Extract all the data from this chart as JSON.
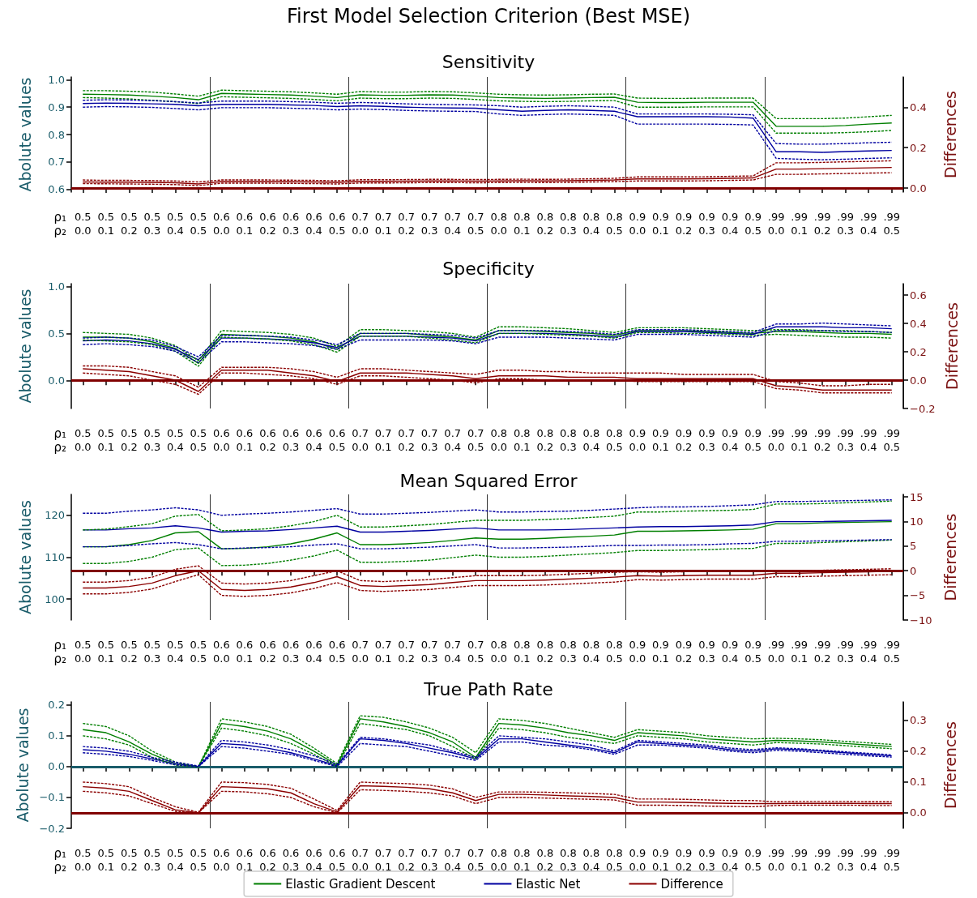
{
  "chart_data": [
    {
      "type": "line",
      "title": "First Model Selection Criterion (Best MSE)",
      "subtitle": "Sensitivity",
      "xlabel": "ρ₁\nρ₂",
      "ylabel": "Abolute values",
      "y2label": "Differences",
      "marker": "none",
      "categories": [
        "0.5\n0.0",
        "0.5\n0.1",
        "0.5\n0.2",
        "0.5\n0.3",
        "0.5\n0.4",
        "0.5\n0.5",
        "0.6\n0.0",
        "0.6\n0.1",
        "0.6\n0.2",
        "0.6\n0.3",
        "0.6\n0.4",
        "0.6\n0.5",
        "0.7\n0.0",
        "0.7\n0.1",
        "0.7\n0.2",
        "0.7\n0.3",
        "0.7\n0.4",
        "0.7\n0.5",
        "0.8\n0.0",
        "0.8\n0.1",
        "0.8\n0.2",
        "0.8\n0.3",
        "0.8\n0.4",
        "0.8\n0.5",
        "0.9\n0.0",
        "0.9\n0.1",
        "0.9\n0.2",
        "0.9\n0.3",
        "0.9\n0.4",
        "0.9\n0.5",
        ".99\n0.0",
        ".99\n0.1",
        ".99\n0.2",
        ".99\n0.3",
        ".99\n0.4",
        ".99\n0.5"
      ],
      "ylim": [
        0.59,
        1.01
      ],
      "yticks": [
        0.6,
        0.7,
        0.8,
        0.9,
        {
          "value": 1,
          "label": "1.0"
        }
      ],
      "y2lim": [
        -0.02,
        0.55
      ],
      "y2ticks": [
        {
          "value": 0,
          "label": "0.0"
        },
        0.2,
        0.4
      ],
      "ref_lines": [
        {
          "axis": "y2",
          "value": 0,
          "color": "#800000"
        }
      ],
      "series": [
        {
          "color": "#007f00",
          "values": [
            0.947,
            0.946,
            0.944,
            0.94,
            0.935,
            0.927,
            0.95,
            0.948,
            0.946,
            0.944,
            0.94,
            0.935,
            0.945,
            0.943,
            0.943,
            0.945,
            0.944,
            0.94,
            0.935,
            0.933,
            0.932,
            0.933,
            0.935,
            0.936,
            0.918,
            0.917,
            0.917,
            0.918,
            0.918,
            0.918,
            0.83,
            0.83,
            0.83,
            0.833,
            0.838,
            0.842
          ]
        },
        {
          "color": "#007f00",
          "line_style": "dashed",
          "values": [
            0.96,
            0.96,
            0.958,
            0.955,
            0.948,
            0.94,
            0.962,
            0.96,
            0.958,
            0.956,
            0.952,
            0.947,
            0.957,
            0.955,
            0.955,
            0.957,
            0.956,
            0.952,
            0.947,
            0.945,
            0.944,
            0.945,
            0.947,
            0.948,
            0.933,
            0.932,
            0.932,
            0.933,
            0.933,
            0.933,
            0.858,
            0.858,
            0.858,
            0.86,
            0.865,
            0.87
          ]
        },
        {
          "color": "#007f00",
          "line_style": "dashed",
          "values": [
            0.935,
            0.933,
            0.93,
            0.925,
            0.92,
            0.913,
            0.938,
            0.936,
            0.934,
            0.932,
            0.928,
            0.923,
            0.933,
            0.931,
            0.931,
            0.933,
            0.932,
            0.928,
            0.923,
            0.921,
            0.92,
            0.921,
            0.923,
            0.924,
            0.9,
            0.9,
            0.9,
            0.901,
            0.901,
            0.901,
            0.805,
            0.805,
            0.805,
            0.807,
            0.81,
            0.815
          ]
        },
        {
          "color": "#0000a0",
          "values": [
            0.913,
            0.915,
            0.914,
            0.912,
            0.91,
            0.905,
            0.91,
            0.91,
            0.91,
            0.908,
            0.906,
            0.902,
            0.905,
            0.903,
            0.9,
            0.898,
            0.897,
            0.896,
            0.89,
            0.885,
            0.888,
            0.89,
            0.888,
            0.885,
            0.865,
            0.865,
            0.865,
            0.865,
            0.864,
            0.86,
            0.737,
            0.737,
            0.735,
            0.738,
            0.74,
            0.742
          ]
        },
        {
          "color": "#0000a0",
          "line_style": "dashed",
          "values": [
            0.925,
            0.927,
            0.926,
            0.924,
            0.92,
            0.915,
            0.922,
            0.922,
            0.922,
            0.92,
            0.918,
            0.914,
            0.917,
            0.915,
            0.912,
            0.91,
            0.909,
            0.908,
            0.905,
            0.9,
            0.903,
            0.905,
            0.903,
            0.9,
            0.875,
            0.875,
            0.875,
            0.875,
            0.874,
            0.872,
            0.767,
            0.765,
            0.765,
            0.767,
            0.77,
            0.772
          ]
        },
        {
          "color": "#0000a0",
          "line_style": "dashed",
          "values": [
            0.9,
            0.902,
            0.901,
            0.899,
            0.895,
            0.89,
            0.898,
            0.898,
            0.898,
            0.896,
            0.894,
            0.89,
            0.893,
            0.891,
            0.888,
            0.886,
            0.885,
            0.884,
            0.875,
            0.87,
            0.873,
            0.875,
            0.873,
            0.87,
            0.838,
            0.838,
            0.838,
            0.838,
            0.837,
            0.835,
            0.713,
            0.71,
            0.708,
            0.71,
            0.713,
            0.715
          ]
        },
        {
          "color": "#8b0000",
          "axis": "y2",
          "values": [
            0.03,
            0.029,
            0.029,
            0.028,
            0.026,
            0.02,
            0.032,
            0.032,
            0.032,
            0.031,
            0.03,
            0.028,
            0.033,
            0.033,
            0.034,
            0.035,
            0.035,
            0.034,
            0.035,
            0.036,
            0.035,
            0.036,
            0.038,
            0.04,
            0.045,
            0.045,
            0.045,
            0.046,
            0.048,
            0.05,
            0.094,
            0.094,
            0.096,
            0.098,
            0.1,
            0.102
          ]
        },
        {
          "color": "#8b0000",
          "axis": "y2",
          "line_style": "dashed",
          "values": [
            0.04,
            0.038,
            0.038,
            0.037,
            0.035,
            0.03,
            0.04,
            0.04,
            0.04,
            0.039,
            0.038,
            0.036,
            0.041,
            0.041,
            0.042,
            0.043,
            0.043,
            0.042,
            0.043,
            0.044,
            0.043,
            0.044,
            0.046,
            0.048,
            0.055,
            0.055,
            0.055,
            0.056,
            0.058,
            0.06,
            0.125,
            0.125,
            0.127,
            0.13,
            0.132,
            0.135
          ]
        },
        {
          "color": "#8b0000",
          "axis": "y2",
          "line_style": "dashed",
          "values": [
            0.022,
            0.021,
            0.02,
            0.019,
            0.017,
            0.012,
            0.024,
            0.024,
            0.024,
            0.023,
            0.022,
            0.02,
            0.025,
            0.025,
            0.026,
            0.027,
            0.027,
            0.026,
            0.027,
            0.028,
            0.027,
            0.028,
            0.03,
            0.032,
            0.035,
            0.035,
            0.035,
            0.036,
            0.038,
            0.04,
            0.068,
            0.068,
            0.07,
            0.072,
            0.074,
            0.076
          ]
        }
      ]
    },
    {
      "type": "line",
      "title": "Specificity",
      "xlabel": "ρ₁\nρ₂",
      "ylabel": "Abolute values",
      "y2label": "Differences",
      "marker": "none",
      "categories": [
        "0.5\n0.0",
        "0.5\n0.1",
        "0.5\n0.2",
        "0.5\n0.3",
        "0.5\n0.4",
        "0.5\n0.5",
        "0.6\n0.0",
        "0.6\n0.1",
        "0.6\n0.2",
        "0.6\n0.3",
        "0.6\n0.4",
        "0.6\n0.5",
        "0.7\n0.0",
        "0.7\n0.1",
        "0.7\n0.2",
        "0.7\n0.3",
        "0.7\n0.4",
        "0.7\n0.5",
        "0.8\n0.0",
        "0.8\n0.1",
        "0.8\n0.2",
        "0.8\n0.3",
        "0.8\n0.4",
        "0.8\n0.5",
        "0.9\n0.0",
        "0.9\n0.1",
        "0.9\n0.2",
        "0.9\n0.3",
        "0.9\n0.4",
        "0.9\n0.5",
        ".99\n0.0",
        ".99\n0.1",
        ".99\n0.2",
        ".99\n0.3",
        ".99\n0.4",
        ".99\n0.5"
      ],
      "ylim": [
        -0.3,
        1.03
      ],
      "yticks": [
        {
          "value": 0,
          "label": "0.0"
        },
        0.5,
        {
          "value": 1,
          "label": "1.0"
        }
      ],
      "y2lim": [
        -0.2,
        0.68
      ],
      "y2ticks": [
        {
          "value": -0.2,
          "label": "−0.2"
        },
        {
          "value": 0,
          "label": "0.0"
        },
        0.2,
        0.4,
        0.6
      ],
      "ref_lines": [
        {
          "axis": "y2",
          "value": 0,
          "color": "#800000"
        }
      ],
      "series": [
        {
          "color": "#007f00",
          "values": [
            0.46,
            0.46,
            0.45,
            0.41,
            0.34,
            0.18,
            0.49,
            0.48,
            0.47,
            0.45,
            0.41,
            0.33,
            0.5,
            0.5,
            0.5,
            0.48,
            0.46,
            0.43,
            0.53,
            0.53,
            0.52,
            0.51,
            0.5,
            0.48,
            0.53,
            0.53,
            0.53,
            0.52,
            0.51,
            0.5,
            0.52,
            0.52,
            0.51,
            0.5,
            0.5,
            0.49
          ]
        },
        {
          "color": "#007f00",
          "line_style": "dashed",
          "values": [
            0.51,
            0.5,
            0.49,
            0.45,
            0.37,
            0.21,
            0.53,
            0.52,
            0.51,
            0.49,
            0.45,
            0.36,
            0.54,
            0.54,
            0.53,
            0.52,
            0.5,
            0.46,
            0.57,
            0.57,
            0.56,
            0.55,
            0.53,
            0.51,
            0.56,
            0.56,
            0.56,
            0.55,
            0.54,
            0.53,
            0.54,
            0.54,
            0.53,
            0.53,
            0.52,
            0.51
          ]
        },
        {
          "color": "#007f00",
          "line_style": "dashed",
          "values": [
            0.43,
            0.42,
            0.41,
            0.38,
            0.31,
            0.15,
            0.46,
            0.45,
            0.44,
            0.42,
            0.38,
            0.3,
            0.47,
            0.47,
            0.47,
            0.45,
            0.43,
            0.4,
            0.5,
            0.5,
            0.49,
            0.48,
            0.47,
            0.45,
            0.51,
            0.51,
            0.5,
            0.5,
            0.49,
            0.48,
            0.49,
            0.48,
            0.47,
            0.46,
            0.46,
            0.45
          ]
        },
        {
          "color": "#0000a0",
          "values": [
            0.42,
            0.43,
            0.42,
            0.39,
            0.33,
            0.22,
            0.45,
            0.45,
            0.44,
            0.43,
            0.4,
            0.35,
            0.47,
            0.47,
            0.47,
            0.46,
            0.45,
            0.42,
            0.5,
            0.5,
            0.5,
            0.49,
            0.48,
            0.46,
            0.52,
            0.52,
            0.52,
            0.51,
            0.5,
            0.49,
            0.57,
            0.57,
            0.57,
            0.56,
            0.56,
            0.55
          ]
        },
        {
          "color": "#0000a0",
          "line_style": "dashed",
          "values": [
            0.45,
            0.46,
            0.45,
            0.43,
            0.36,
            0.25,
            0.48,
            0.48,
            0.47,
            0.46,
            0.43,
            0.38,
            0.5,
            0.5,
            0.5,
            0.49,
            0.48,
            0.45,
            0.53,
            0.53,
            0.53,
            0.52,
            0.51,
            0.49,
            0.54,
            0.54,
            0.54,
            0.53,
            0.52,
            0.51,
            0.6,
            0.6,
            0.61,
            0.6,
            0.59,
            0.58
          ]
        },
        {
          "color": "#0000a0",
          "line_style": "dashed",
          "values": [
            0.38,
            0.39,
            0.38,
            0.36,
            0.31,
            0.19,
            0.41,
            0.41,
            0.4,
            0.39,
            0.37,
            0.33,
            0.43,
            0.43,
            0.43,
            0.43,
            0.42,
            0.39,
            0.46,
            0.46,
            0.46,
            0.45,
            0.44,
            0.43,
            0.49,
            0.49,
            0.49,
            0.48,
            0.47,
            0.46,
            0.53,
            0.53,
            0.53,
            0.52,
            0.52,
            0.51
          ]
        },
        {
          "color": "#8b0000",
          "axis": "y2",
          "values": [
            0.08,
            0.07,
            0.06,
            0.03,
            0,
            -0.08,
            0.07,
            0.07,
            0.07,
            0.05,
            0.03,
            -0.01,
            0.05,
            0.05,
            0.05,
            0.04,
            0.03,
            0.01,
            0.03,
            0.03,
            0.03,
            0.02,
            0.02,
            0.02,
            0.01,
            0.01,
            0.01,
            0.01,
            0.01,
            0.01,
            -0.04,
            -0.05,
            -0.07,
            -0.07,
            -0.07,
            -0.07
          ]
        },
        {
          "color": "#8b0000",
          "axis": "y2",
          "line_style": "dashed",
          "values": [
            0.1,
            0.1,
            0.09,
            0.06,
            0.03,
            -0.05,
            0.09,
            0.09,
            0.09,
            0.08,
            0.06,
            0.02,
            0.08,
            0.08,
            0.07,
            0.06,
            0.05,
            0.04,
            0.07,
            0.07,
            0.06,
            0.06,
            0.05,
            0.05,
            0.05,
            0.05,
            0.04,
            0.04,
            0.04,
            0.04,
            -0.01,
            -0.02,
            -0.04,
            -0.04,
            -0.03,
            -0.03
          ]
        },
        {
          "color": "#8b0000",
          "axis": "y2",
          "line_style": "dashed",
          "values": [
            0.05,
            0.04,
            0.03,
            0,
            -0.03,
            -0.1,
            0.05,
            0.05,
            0.04,
            0.03,
            0.01,
            -0.03,
            0.03,
            0.03,
            0.02,
            0.01,
            0,
            -0.02,
            0.01,
            0.01,
            0,
            0,
            0,
            0,
            -0.01,
            -0.01,
            -0.01,
            -0.01,
            -0.01,
            -0.01,
            -0.06,
            -0.07,
            -0.09,
            -0.09,
            -0.09,
            -0.09
          ]
        }
      ]
    },
    {
      "type": "line",
      "title": "Mean Squared Error",
      "xlabel": "ρ₁\nρ₂",
      "ylabel": "Abolute values",
      "y2label": "Differences",
      "marker": "none",
      "categories": [
        "0.5\n0.0",
        "0.5\n0.1",
        "0.5\n0.2",
        "0.5\n0.3",
        "0.5\n0.4",
        "0.5\n0.5",
        "0.6\n0.0",
        "0.6\n0.1",
        "0.6\n0.2",
        "0.6\n0.3",
        "0.6\n0.4",
        "0.6\n0.5",
        "0.7\n0.0",
        "0.7\n0.1",
        "0.7\n0.2",
        "0.7\n0.3",
        "0.7\n0.4",
        "0.7\n0.5",
        "0.8\n0.0",
        "0.8\n0.1",
        "0.8\n0.2",
        "0.8\n0.3",
        "0.8\n0.4",
        "0.8\n0.5",
        "0.9\n0.0",
        "0.9\n0.1",
        "0.9\n0.2",
        "0.9\n0.3",
        "0.9\n0.4",
        "0.9\n0.5",
        ".99\n0.0",
        ".99\n0.1",
        ".99\n0.2",
        ".99\n0.3",
        ".99\n0.4",
        ".99\n0.5"
      ],
      "ylim": [
        95,
        125
      ],
      "yticks": [
        100,
        110,
        120
      ],
      "y2lim": [
        -10,
        15.5
      ],
      "y2ticks": [
        {
          "value": -10,
          "label": "−10"
        },
        {
          "value": -5,
          "label": "−5"
        },
        0,
        5,
        10,
        15
      ],
      "ref_lines": [
        {
          "axis": "y2",
          "value": 0,
          "color": "#800000"
        }
      ],
      "series": [
        {
          "color": "#007f00",
          "values": [
            112.5,
            112.5,
            113,
            114,
            115.8,
            116.1,
            112,
            112.1,
            112.5,
            113.2,
            114.3,
            115.8,
            113,
            113,
            113.2,
            113.5,
            114,
            114.6,
            114.3,
            114.3,
            114.5,
            114.8,
            115,
            115.3,
            116.2,
            116.2,
            116.3,
            116.4,
            116.5,
            116.7,
            118,
            118,
            118.2,
            118.3,
            118.4,
            118.5
          ]
        },
        {
          "color": "#007f00",
          "line_style": "dashed",
          "values": [
            116.5,
            116.7,
            117.3,
            118,
            119.8,
            120.2,
            116.3,
            116.5,
            116.8,
            117.5,
            118.5,
            120,
            117.2,
            117.2,
            117.5,
            117.8,
            118.3,
            118.8,
            118.8,
            118.8,
            119,
            119.2,
            119.5,
            119.8,
            120.8,
            120.8,
            121,
            121.1,
            121.2,
            121.4,
            122.7,
            122.7,
            122.8,
            123,
            123.2,
            123.4
          ]
        },
        {
          "color": "#007f00",
          "line_style": "dashed",
          "values": [
            108.5,
            108.5,
            109,
            110,
            111.8,
            112.2,
            108,
            108.1,
            108.5,
            109.3,
            110.3,
            111.7,
            108.8,
            108.8,
            109,
            109.3,
            109.9,
            110.5,
            110,
            110,
            110.2,
            110.5,
            110.8,
            111.1,
            111.6,
            111.6,
            111.7,
            111.8,
            112,
            112.1,
            113.3,
            113.3,
            113.5,
            113.7,
            113.9,
            114.1
          ]
        },
        {
          "color": "#0000a0",
          "values": [
            116.5,
            116.5,
            116.8,
            117,
            117.5,
            117,
            116,
            116.2,
            116.3,
            116.6,
            117,
            117.4,
            116,
            116,
            116.2,
            116.4,
            116.7,
            117,
            116.5,
            116.5,
            116.5,
            116.6,
            116.8,
            117,
            117.2,
            117.3,
            117.3,
            117.4,
            117.5,
            117.7,
            118.5,
            118.5,
            118.5,
            118.6,
            118.7,
            118.8
          ]
        },
        {
          "color": "#0000a0",
          "line_style": "dashed",
          "values": [
            120.5,
            120.5,
            121,
            121.3,
            121.8,
            121.3,
            120,
            120.3,
            120.5,
            120.8,
            121.2,
            121.6,
            120.3,
            120.3,
            120.5,
            120.7,
            121,
            121.3,
            120.8,
            120.8,
            120.9,
            121,
            121.2,
            121.5,
            121.8,
            122,
            122,
            122.1,
            122.3,
            122.5,
            123.3,
            123.3,
            123.4,
            123.5,
            123.6,
            123.7
          ]
        },
        {
          "color": "#0000a0",
          "line_style": "dashed",
          "values": [
            112.5,
            112.5,
            112.8,
            113.2,
            113.5,
            113,
            112,
            112.2,
            112.3,
            112.5,
            112.9,
            113.2,
            112,
            112,
            112.2,
            112.4,
            112.7,
            113,
            112.2,
            112.2,
            112.3,
            112.4,
            112.6,
            112.8,
            112.8,
            112.9,
            112.9,
            113,
            113.2,
            113.3,
            113.8,
            113.8,
            113.9,
            114,
            114.1,
            114.2
          ]
        },
        {
          "color": "#8b0000",
          "axis": "y2",
          "values": [
            -3.5,
            -3.5,
            -3.2,
            -2.5,
            -1,
            0,
            -3.8,
            -4,
            -3.8,
            -3.3,
            -2.4,
            -1.2,
            -3,
            -3.2,
            -3,
            -2.8,
            -2.4,
            -2,
            -2,
            -2,
            -1.9,
            -1.7,
            -1.5,
            -1.3,
            -1,
            -1.1,
            -1,
            -0.9,
            -0.9,
            -0.9,
            -0.5,
            -0.5,
            -0.4,
            -0.3,
            -0.2,
            -0.1
          ]
        },
        {
          "color": "#8b0000",
          "axis": "y2",
          "line_style": "dashed",
          "values": [
            -2.3,
            -2.3,
            -2,
            -1.3,
            0.3,
            1,
            -2.5,
            -2.7,
            -2.5,
            -2,
            -1,
            0,
            -2,
            -2.2,
            -2,
            -1.8,
            -1.4,
            -1,
            -1,
            -1,
            -0.9,
            -0.7,
            -0.5,
            -0.3,
            -0.2,
            -0.3,
            -0.2,
            -0.1,
            -0.1,
            -0.1,
            0,
            0,
            0.1,
            0.2,
            0.3,
            0.4
          ]
        },
        {
          "color": "#8b0000",
          "axis": "y2",
          "line_style": "dashed",
          "values": [
            -4.7,
            -4.7,
            -4.4,
            -3.7,
            -2.2,
            -0.8,
            -5,
            -5.2,
            -5,
            -4.5,
            -3.6,
            -2.4,
            -4,
            -4.2,
            -4,
            -3.8,
            -3.4,
            -3,
            -3,
            -3,
            -2.9,
            -2.7,
            -2.5,
            -2.3,
            -1.8,
            -1.9,
            -1.8,
            -1.7,
            -1.7,
            -1.7,
            -1.2,
            -1.2,
            -1.1,
            -1,
            -0.9,
            -0.8
          ]
        }
      ]
    },
    {
      "type": "line",
      "title": "True Path Rate",
      "xlabel": "ρ₁\nρ₂",
      "ylabel": "Abolute values",
      "y2label": "Differences",
      "marker": "none",
      "legend": "bottom",
      "categories": [
        "0.5\n0.0",
        "0.5\n0.1",
        "0.5\n0.2",
        "0.5\n0.3",
        "0.5\n0.4",
        "0.5\n0.5",
        "0.6\n0.0",
        "0.6\n0.1",
        "0.6\n0.2",
        "0.6\n0.3",
        "0.6\n0.4",
        "0.6\n0.5",
        "0.7\n0.0",
        "0.7\n0.1",
        "0.7\n0.2",
        "0.7\n0.3",
        "0.7\n0.4",
        "0.7\n0.5",
        "0.8\n0.0",
        "0.8\n0.1",
        "0.8\n0.2",
        "0.8\n0.3",
        "0.8\n0.4",
        "0.8\n0.5",
        "0.9\n0.0",
        "0.9\n0.1",
        "0.9\n0.2",
        "0.9\n0.3",
        "0.9\n0.4",
        "0.9\n0.5",
        ".99\n0.0",
        ".99\n0.1",
        ".99\n0.2",
        ".99\n0.3",
        ".99\n0.4",
        ".99\n0.5"
      ],
      "ylim": [
        -0.2,
        0.21
      ],
      "yticks": [
        {
          "value": -0.2,
          "label": "−0.2"
        },
        {
          "value": -0.1,
          "label": "−0.1"
        },
        {
          "value": 0,
          "label": "0.0"
        },
        0.1,
        0.2
      ],
      "y2lim": [
        -0.05,
        0.36
      ],
      "y2ticks": [
        {
          "value": 0,
          "label": "0.0"
        },
        0.1,
        0.2,
        0.3
      ],
      "ref_lines": [
        {
          "axis": "y",
          "value": 0,
          "color": "#1a5c6a"
        },
        {
          "axis": "y2",
          "value": 0,
          "color": "#800000"
        }
      ],
      "series": [
        {
          "name": "Elastic Gradient Descent",
          "color": "#007f00",
          "values": [
            0.12,
            0.11,
            0.08,
            0.04,
            0.01,
            0,
            0.14,
            0.13,
            0.115,
            0.09,
            0.05,
            0.005,
            0.155,
            0.145,
            0.13,
            0.11,
            0.08,
            0.03,
            0.14,
            0.135,
            0.125,
            0.11,
            0.1,
            0.085,
            0.11,
            0.105,
            0.1,
            0.09,
            0.085,
            0.08,
            0.085,
            0.083,
            0.08,
            0.075,
            0.07,
            0.065
          ]
        },
        {
          "color": "#007f00",
          "line_style": "dashed",
          "values": [
            0.14,
            0.13,
            0.1,
            0.05,
            0.015,
            0,
            0.155,
            0.145,
            0.13,
            0.105,
            0.06,
            0.01,
            0.165,
            0.16,
            0.145,
            0.125,
            0.095,
            0.045,
            0.155,
            0.15,
            0.14,
            0.125,
            0.11,
            0.095,
            0.12,
            0.115,
            0.11,
            0.1,
            0.095,
            0.09,
            0.092,
            0.09,
            0.087,
            0.082,
            0.077,
            0.072
          ]
        },
        {
          "color": "#007f00",
          "line_style": "dashed",
          "values": [
            0.1,
            0.09,
            0.07,
            0.03,
            0.005,
            0,
            0.125,
            0.115,
            0.1,
            0.075,
            0.04,
            0,
            0.14,
            0.13,
            0.12,
            0.1,
            0.065,
            0.025,
            0.125,
            0.12,
            0.11,
            0.095,
            0.085,
            0.075,
            0.1,
            0.095,
            0.09,
            0.08,
            0.075,
            0.07,
            0.078,
            0.076,
            0.073,
            0.068,
            0.063,
            0.058
          ]
        },
        {
          "name": "Elastic Net",
          "color": "#0000a0",
          "values": [
            0.055,
            0.05,
            0.04,
            0.025,
            0.01,
            0,
            0.075,
            0.07,
            0.06,
            0.045,
            0.025,
            0.003,
            0.09,
            0.085,
            0.075,
            0.06,
            0.045,
            0.025,
            0.09,
            0.09,
            0.08,
            0.07,
            0.06,
            0.045,
            0.08,
            0.075,
            0.07,
            0.065,
            0.055,
            0.05,
            0.058,
            0.055,
            0.05,
            0.045,
            0.04,
            0.035
          ]
        },
        {
          "color": "#0000a0",
          "line_style": "dashed",
          "values": [
            0.065,
            0.06,
            0.05,
            0.03,
            0.015,
            0.002,
            0.085,
            0.08,
            0.07,
            0.055,
            0.035,
            0.007,
            0.095,
            0.09,
            0.08,
            0.07,
            0.05,
            0.03,
            0.1,
            0.095,
            0.09,
            0.08,
            0.07,
            0.05,
            0.085,
            0.08,
            0.075,
            0.07,
            0.06,
            0.055,
            0.061,
            0.058,
            0.053,
            0.048,
            0.043,
            0.038
          ]
        },
        {
          "color": "#0000a0",
          "line_style": "dashed",
          "values": [
            0.045,
            0.04,
            0.033,
            0.02,
            0.006,
            0,
            0.065,
            0.06,
            0.05,
            0.04,
            0.02,
            0,
            0.075,
            0.07,
            0.065,
            0.05,
            0.035,
            0.02,
            0.08,
            0.08,
            0.07,
            0.065,
            0.055,
            0.04,
            0.07,
            0.07,
            0.065,
            0.06,
            0.05,
            0.045,
            0.053,
            0.05,
            0.045,
            0.04,
            0.035,
            0.031
          ]
        },
        {
          "name": "Difference",
          "color": "#8b0000",
          "axis": "y2",
          "values": [
            0.085,
            0.08,
            0.07,
            0.04,
            0.01,
            0,
            0.085,
            0.082,
            0.078,
            0.065,
            0.03,
            0.003,
            0.088,
            0.086,
            0.083,
            0.078,
            0.065,
            0.04,
            0.06,
            0.06,
            0.058,
            0.055,
            0.053,
            0.05,
            0.035,
            0.035,
            0.034,
            0.032,
            0.031,
            0.03,
            0.03,
            0.031,
            0.031,
            0.031,
            0.03,
            0.03
          ]
        },
        {
          "color": "#8b0000",
          "axis": "y2",
          "line_style": "dashed",
          "values": [
            0.1,
            0.095,
            0.085,
            0.05,
            0.02,
            0.002,
            0.1,
            0.098,
            0.092,
            0.08,
            0.045,
            0.008,
            0.1,
            0.097,
            0.095,
            0.09,
            0.078,
            0.05,
            0.068,
            0.068,
            0.067,
            0.065,
            0.063,
            0.06,
            0.045,
            0.045,
            0.044,
            0.042,
            0.04,
            0.04,
            0.036,
            0.037,
            0.037,
            0.037,
            0.036,
            0.036
          ]
        },
        {
          "color": "#8b0000",
          "axis": "y2",
          "line_style": "dashed",
          "values": [
            0.07,
            0.065,
            0.055,
            0.03,
            0.005,
            0,
            0.07,
            0.068,
            0.062,
            0.05,
            0.02,
            0,
            0.075,
            0.073,
            0.07,
            0.065,
            0.055,
            0.03,
            0.05,
            0.05,
            0.048,
            0.046,
            0.044,
            0.042,
            0.025,
            0.025,
            0.024,
            0.022,
            0.021,
            0.02,
            0.024,
            0.025,
            0.025,
            0.025,
            0.024,
            0.024
          ]
        }
      ]
    }
  ]
}
